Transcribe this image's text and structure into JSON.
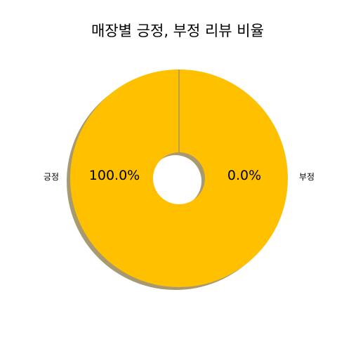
{
  "chart_data": {
    "type": "pie",
    "title": "매장별 긍정, 부정 리뷰 비율",
    "labels": [
      "긍정",
      "부정"
    ],
    "values": [
      100.0,
      0.0
    ],
    "percent_labels": [
      "100.0%",
      "0.0%"
    ],
    "colors": [
      "#ffc000",
      "#7f7f7f"
    ],
    "shadow_color": "#a89a70",
    "donut": true,
    "legend": "none"
  }
}
